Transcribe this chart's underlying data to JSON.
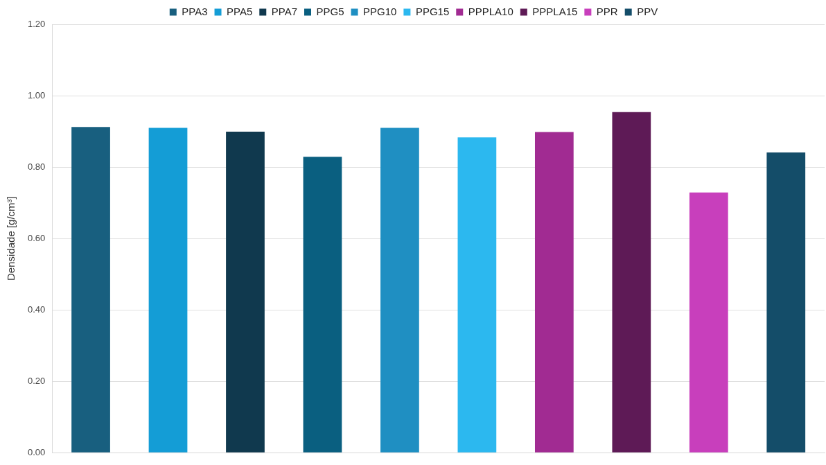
{
  "chart_data": {
    "type": "bar",
    "ylabel": "Densidade [g/cm³]",
    "categories": [
      null
    ],
    "series": [
      {
        "name": "PPA3",
        "color": "#185f7f",
        "values": [
          0.912
        ]
      },
      {
        "name": "PPA5",
        "color": "#149dd6",
        "values": [
          0.91
        ]
      },
      {
        "name": "PPA7",
        "color": "#10394e",
        "values": [
          0.899
        ]
      },
      {
        "name": "PPG5",
        "color": "#0a5f80",
        "values": [
          0.829
        ]
      },
      {
        "name": "PPG10",
        "color": "#1f8fc2",
        "values": [
          0.91
        ]
      },
      {
        "name": "PPG15",
        "color": "#2cb8ef",
        "values": [
          0.883
        ]
      },
      {
        "name": "PPPLA10",
        "color": "#a12b92",
        "values": [
          0.898
        ]
      },
      {
        "name": "PPPLA15",
        "color": "#5e1a56",
        "values": [
          0.954
        ]
      },
      {
        "name": "PPR",
        "color": "#c83fbc",
        "values": [
          0.729
        ]
      },
      {
        "name": "PPV",
        "color": "#144d69",
        "values": [
          0.841
        ]
      }
    ],
    "ylim": [
      0,
      1.2
    ],
    "yticks": [
      {
        "value": 0,
        "label": "0.00"
      },
      {
        "value": 0.2,
        "label": "0.20"
      },
      {
        "value": 0.4,
        "label": "0.40"
      },
      {
        "value": 0.6,
        "label": "0.60"
      },
      {
        "value": 0.8,
        "label": "0.80"
      },
      {
        "value": 1,
        "label": "1.00"
      },
      {
        "value": 1.2,
        "label": "1.20"
      }
    ],
    "grid": "y",
    "legend": "top",
    "tick_labels": "y"
  }
}
